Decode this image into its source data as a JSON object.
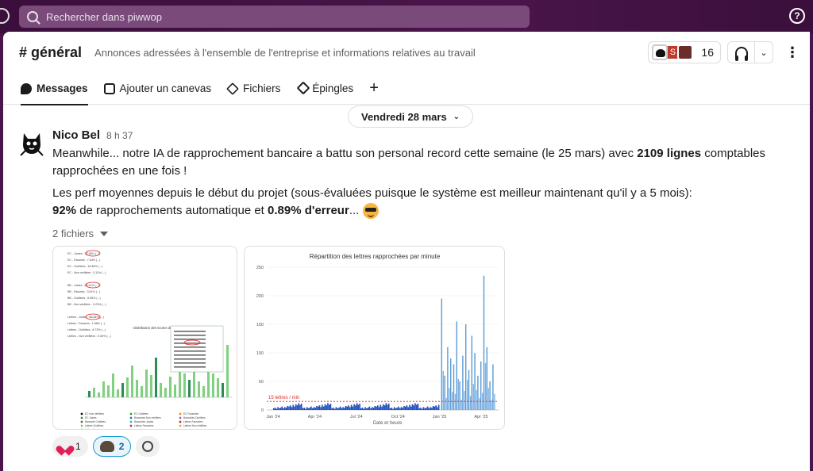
{
  "search": {
    "placeholder": "Rechercher dans piwwop"
  },
  "channel": {
    "name": "# général",
    "description": "Annonces adressées à l'ensemble de l'entreprise et informations relatives au travail",
    "member_count": "16",
    "avatar_letter": "S"
  },
  "tabs": [
    {
      "label": "Messages",
      "icon": "message-icon",
      "active": true
    },
    {
      "label": "Ajouter un canevas",
      "icon": "canvas-icon"
    },
    {
      "label": "Fichiers",
      "icon": "files-icon"
    },
    {
      "label": "Épingles",
      "icon": "pin-icon"
    }
  ],
  "date_divider": {
    "label": "Vendredi 28 mars"
  },
  "message": {
    "author": "Nico Bel",
    "time": "8 h 37",
    "p1_a": "Meanwhile... notre IA de rapprochement bancaire a battu son personal record cette semaine (le 25 mars) avec ",
    "p1_bold": "2109 lignes",
    "p1_b": " comptables rapprochées en une fois !",
    "p2_a": "Les perf moyennes depuis le début du projet (sous-évaluées puisque le système est meilleur maintenant qu'il y a 5 mois):",
    "p2_bold1": "92%",
    "p2_b": " de rapprochements automatique et ",
    "p2_bold2": "0.89% d'erreur",
    "p2_c": "...",
    "emoji": "sunglasses-emoji",
    "files_label": "2 fichiers"
  },
  "file1": {
    "chart_title": "Distribution des scores de rapp",
    "stats_lines": [
      "EC - Justes : 92.46% (...)",
      "EC - Faussés : 7.54% (...)",
      "EC - Oubliées : 18.46% (...)",
      "EC - Non vérifiées : 0.11% (...)",
      "BB - Justes : 90.41% (...)",
      "BB - Faussés : 3.61% (...)",
      "BB - Oubliées : 6.06% (...)",
      "BB - Non vérifiées : 0.29% (...)",
      "Lettres - Justes : 88.84% (...)",
      "Lettres - Faussés : 1.88% (...)",
      "Lettres - Oubliées : 8.73% (...)",
      "Lettres - Non vérifiées : 0.06% (...)"
    ],
    "legend": [
      "EC Non vérifiées",
      "EC Oubliées",
      "EC Faussées",
      "EC Justes",
      "Bancaires Non vérifiées",
      "Bancaires Oubliées",
      "Bancaire Oubliées",
      "Bancaires Justes",
      "Lettres Faussées",
      "Lettres Oubliées",
      "Lettres Faussées",
      "Lettres Non vérifiées",
      "Lettres Justes"
    ]
  },
  "chart_data": {
    "type": "bar",
    "title": "Répartition des lettres rapprochées par minute",
    "xlabel": "Date et heure",
    "ylabel": "",
    "x_ticks": [
      "Jan '24",
      "Apr '24",
      "Jul '24",
      "Oct '24",
      "Jan '25",
      "Apr '25"
    ],
    "y_ticks": [
      0,
      50,
      100,
      150,
      200,
      250
    ],
    "ylim": [
      0,
      250
    ],
    "threshold": {
      "value": 15,
      "label": "15 lettres / min"
    },
    "spikes": [
      {
        "x": "Jan '25",
        "values": [
          195,
          60,
          110,
          90,
          80,
          155,
          50,
          95,
          150,
          70,
          130,
          100,
          60,
          85,
          235,
          110,
          50,
          80
        ]
      }
    ],
    "baseline_values": [
      3,
      4,
      2,
      5,
      3,
      4,
      6,
      3,
      5,
      4,
      7,
      6,
      8,
      5,
      9,
      6,
      10,
      8,
      12,
      9,
      11
    ]
  },
  "reactions": [
    {
      "emoji": "heart-emoji",
      "count": "1",
      "mine": false
    },
    {
      "emoji": "muscle-emoji",
      "count": "2",
      "mine": true
    }
  ]
}
